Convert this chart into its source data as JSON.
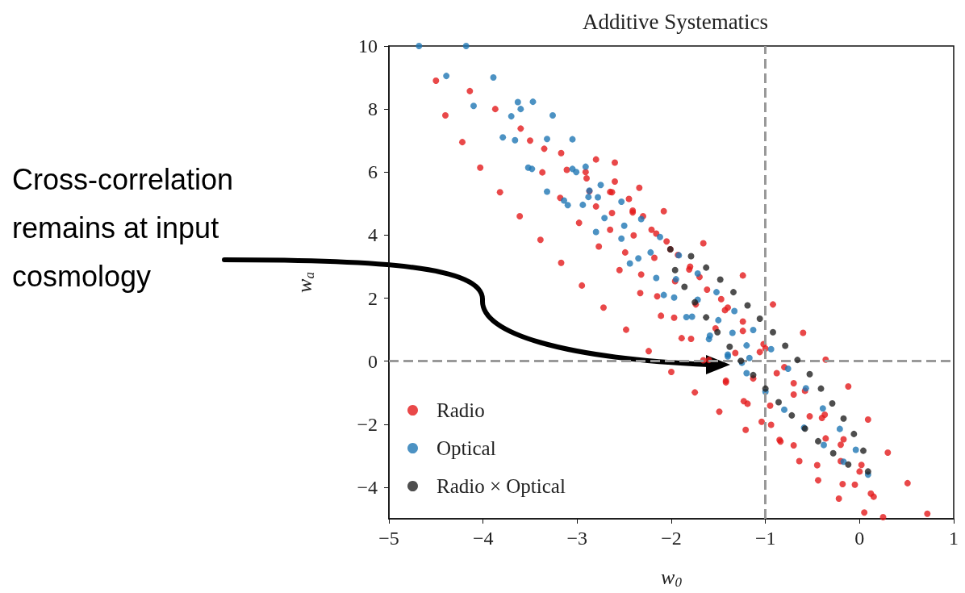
{
  "chart_data": {
    "type": "scatter",
    "title": "Additive Systematics",
    "xlabel": "w$_{0}$",
    "ylabel": "w$_{a}$",
    "xlim": [
      -5,
      1
    ],
    "xticks": [
      -5,
      -4,
      -3,
      -2,
      -1,
      0,
      1
    ],
    "ylim": [
      -5,
      10
    ],
    "yticks": [
      -4,
      -2,
      0,
      2,
      4,
      6,
      8,
      10
    ],
    "legend": "bottom left",
    "marker": "circle",
    "ref_lines": [
      {
        "axis": "x",
        "value": -1,
        "color": "#999999",
        "line_style": "dashed"
      },
      {
        "axis": "y",
        "value": 0,
        "color": "#999999",
        "line_style": "dashed"
      }
    ],
    "annotations": [
      "Cross-correlation remains at input cosmology"
    ],
    "series": [
      {
        "name": "Radio",
        "color": "#e41a1c",
        "x": [
          -0.85,
          -1.21,
          -1.49,
          -1.75,
          -2.0,
          -2.24,
          -2.48,
          -2.72,
          -2.95,
          -3.17,
          -3.39,
          -3.61,
          -3.82,
          -4.03,
          -4.22,
          -4.4,
          -4.5,
          -4.14,
          -3.87,
          -3.6,
          -3.35,
          -3.11,
          -2.87,
          -2.63,
          -2.4,
          -2.18,
          -1.96,
          -1.74,
          -1.53,
          -1.32,
          -1.13,
          -0.95,
          0.15,
          -0.18,
          -0.45,
          -0.7,
          -0.94,
          -1.19,
          -1.42,
          -1.66,
          -1.89,
          -2.11,
          -2.33,
          -2.55,
          -2.77,
          -2.98,
          -3.18,
          -3.37,
          -3.5,
          -3.17,
          -2.91,
          -2.65,
          -2.41,
          -2.16,
          -1.93,
          -1.7,
          -1.47,
          -1.24,
          -1.02,
          -0.8,
          -0.58,
          -0.37,
          -0.17,
          0.02,
          0.05,
          -0.22,
          -0.44,
          -0.64,
          -0.84,
          -1.04,
          -1.23,
          -1.42,
          -1.6,
          -1.79,
          -1.97,
          -2.15,
          -2.32,
          -2.49,
          -2.65,
          -2.8,
          -2.9,
          -2.63,
          -2.41,
          -2.21,
          -2.01,
          -1.81,
          -1.62,
          -1.43,
          -1.24,
          -1.06,
          -0.88,
          -0.7,
          -0.53,
          -0.36,
          -0.2,
          -0.05,
          0.25,
          0.12,
          0.0,
          -0.2,
          -0.4,
          -0.7,
          -1.0,
          -1.4,
          -1.8,
          -2.05,
          -2.3,
          -2.45,
          -2.6,
          -2.8,
          -2.6,
          -2.34,
          -2.08,
          -1.66,
          -1.24,
          -0.92,
          -0.6,
          -0.36,
          -0.12,
          0.09,
          0.3,
          0.51,
          0.72
        ],
        "values": [
          -2.5,
          -2.18,
          -1.6,
          -0.99,
          -0.34,
          0.32,
          1.0,
          1.7,
          2.4,
          3.12,
          3.85,
          4.6,
          5.36,
          6.14,
          6.95,
          7.8,
          8.9,
          8.57,
          8.0,
          7.38,
          6.74,
          6.07,
          5.39,
          4.7,
          3.99,
          3.28,
          2.54,
          1.8,
          1.04,
          0.26,
          -0.55,
          -1.41,
          -4.3,
          -3.9,
          -3.3,
          -2.67,
          -2.02,
          -1.35,
          -0.67,
          0.03,
          0.73,
          1.44,
          2.16,
          2.89,
          3.64,
          4.39,
          5.18,
          5.99,
          7.0,
          6.6,
          6.0,
          5.37,
          4.72,
          4.05,
          3.37,
          2.67,
          1.97,
          1.26,
          0.54,
          -0.19,
          -0.94,
          -1.7,
          -2.48,
          -3.29,
          -4.8,
          -4.36,
          -3.78,
          -3.17,
          -2.55,
          -1.92,
          -1.27,
          -0.62,
          0.04,
          0.71,
          1.38,
          2.06,
          2.75,
          3.45,
          4.17,
          4.91,
          5.8,
          5.36,
          4.78,
          4.17,
          3.55,
          2.91,
          2.27,
          1.62,
          0.96,
          0.29,
          -0.38,
          -1.06,
          -1.75,
          -2.45,
          -3.17,
          -3.92,
          -4.95,
          -4.2,
          -3.5,
          -2.65,
          -1.8,
          -0.7,
          0.4,
          1.7,
          3.0,
          3.8,
          4.6,
          5.15,
          5.7,
          6.4,
          6.3,
          5.5,
          4.76,
          3.74,
          2.72,
          1.8,
          0.9,
          0.05,
          -0.8,
          -1.85,
          -2.9,
          -3.87,
          -4.84
        ]
      },
      {
        "name": "Optical",
        "color": "#1f77b4",
        "x": [
          -4.68,
          -4.39,
          -4.1,
          -3.79,
          -3.48,
          -3.14,
          -2.8,
          -2.44,
          -2.08,
          -1.84,
          -1.6,
          -1.4,
          -1.25,
          -1.17,
          -1.2,
          -1.35,
          -1.5,
          -1.72,
          -1.95,
          -2.22,
          -2.5,
          -2.78,
          -3.05,
          -3.32,
          -3.6,
          -3.89,
          -4.18,
          -2.94,
          -3.1,
          -3.32,
          -3.52,
          -3.66,
          -3.7,
          -3.63,
          -3.47,
          -3.26,
          -3.05,
          -2.91,
          -2.87,
          0.09,
          -0.17,
          -0.38,
          -0.59,
          -0.8,
          -1.0,
          -1.2,
          -1.4,
          -1.59,
          -1.78,
          -1.97,
          -2.16,
          -2.35,
          -2.53,
          -2.71,
          -2.88,
          -3.01,
          -2.75,
          -2.53,
          -2.32,
          -2.12,
          -1.92,
          -1.72,
          -1.52,
          -1.33,
          -1.13,
          -0.94,
          -0.76,
          -0.57,
          -0.39,
          -0.21,
          -0.04
        ],
        "values": [
          10,
          9.05,
          8.1,
          7.1,
          6.1,
          5.1,
          4.1,
          3.1,
          2.1,
          1.4,
          0.7,
          0.15,
          -0.05,
          0.1,
          0.5,
          0.9,
          1.3,
          1.95,
          2.6,
          3.45,
          4.3,
          5.2,
          6.1,
          7.05,
          8.0,
          9.0,
          10,
          4.96,
          4.95,
          5.38,
          6.14,
          7.01,
          7.77,
          8.22,
          8.23,
          7.8,
          7.04,
          6.17,
          5.41,
          -3.6,
          -3.19,
          -2.66,
          -2.11,
          -1.54,
          -0.97,
          -0.38,
          0.21,
          0.81,
          1.41,
          2.02,
          2.64,
          3.26,
          3.89,
          4.54,
          5.21,
          6.0,
          5.59,
          5.06,
          4.51,
          3.94,
          3.36,
          2.78,
          2.19,
          1.59,
          0.99,
          0.38,
          -0.24,
          -0.86,
          -1.5,
          -2.15,
          -2.81
        ]
      },
      {
        "name": "Radio × Optical",
        "color": "#222222",
        "x": [
          0.09,
          -0.12,
          -0.28,
          -0.44,
          -0.58,
          -0.72,
          -0.86,
          -1.0,
          -1.13,
          -1.26,
          -1.38,
          -1.51,
          -1.63,
          -1.75,
          -1.86,
          -1.96,
          -2.01,
          -1.79,
          -1.63,
          -1.48,
          -1.34,
          -1.19,
          -1.06,
          -0.92,
          -0.79,
          -0.66,
          -0.53,
          -0.41,
          -0.29,
          -0.17,
          -0.06,
          0.04
        ],
        "values": [
          -3.5,
          -3.28,
          -2.92,
          -2.54,
          -2.14,
          -1.72,
          -1.3,
          -0.87,
          -0.44,
          0.01,
          0.46,
          0.92,
          1.39,
          1.87,
          2.36,
          2.89,
          3.55,
          3.33,
          2.97,
          2.59,
          2.19,
          1.77,
          1.35,
          0.92,
          0.49,
          0.04,
          -0.41,
          -0.87,
          -1.34,
          -1.82,
          -2.31,
          -2.84
        ]
      }
    ]
  }
}
